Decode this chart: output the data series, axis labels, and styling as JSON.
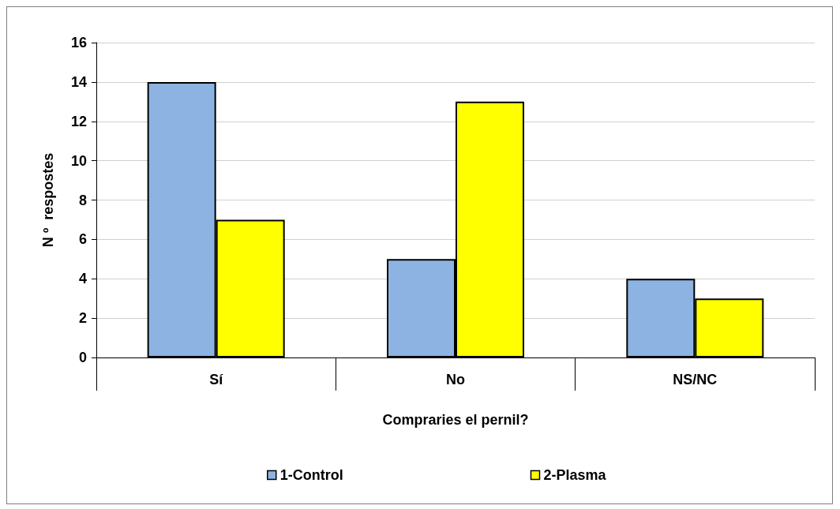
{
  "chart_data": {
    "type": "bar",
    "categories": [
      "Sí",
      "No",
      "NS/NC"
    ],
    "series": [
      {
        "name": "1-Control",
        "color": "#8db3e2",
        "values": [
          14,
          5,
          4
        ]
      },
      {
        "name": "2-Plasma",
        "color": "#ffff00",
        "values": [
          7,
          13,
          3
        ]
      }
    ],
    "xlabel": "Compraries el pernil?",
    "ylabel": "N º  respostes",
    "ylim": [
      0,
      16
    ],
    "yticks": [
      0,
      2,
      4,
      6,
      8,
      10,
      12,
      14,
      16
    ],
    "grid": "y",
    "legend": "bottom"
  }
}
